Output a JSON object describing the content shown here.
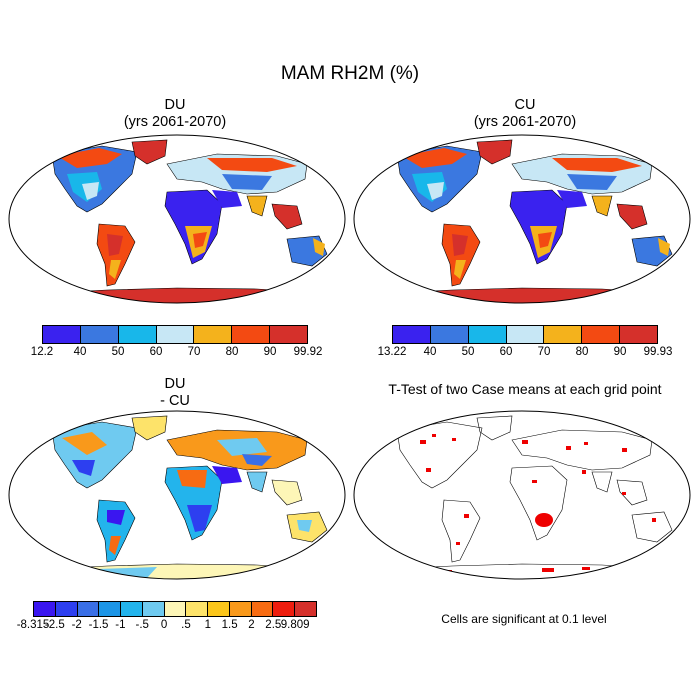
{
  "title": "MAM RH2M (%)",
  "panels": {
    "du": {
      "title": "DU",
      "subtitle": "(yrs 2061-2070)"
    },
    "cu": {
      "title": "CU",
      "subtitle": "(yrs 2061-2070)"
    },
    "diff": {
      "title": "DU",
      "subtitle": "- CU"
    },
    "ttest": {
      "title": "T-Test of two Case means at each grid point"
    }
  },
  "colorbars": {
    "du": {
      "labels": [
        "12.2",
        "40",
        "50",
        "60",
        "70",
        "80",
        "90",
        "99.92"
      ],
      "colors": [
        "#3a22ef",
        "#3b78e0",
        "#18b7ea",
        "#c7e7f5",
        "#f4b21c",
        "#f34a12",
        "#d5302b"
      ]
    },
    "cu": {
      "labels": [
        "13.22",
        "40",
        "50",
        "60",
        "70",
        "80",
        "90",
        "99.93"
      ],
      "colors": [
        "#3a22ef",
        "#3b78e0",
        "#18b7ea",
        "#c7e7f5",
        "#f4b21c",
        "#f34a12",
        "#d5302b"
      ]
    },
    "diff": {
      "labels": [
        "-8.315",
        "-2.5",
        "-2",
        "-1.5",
        "-1",
        "-.5",
        "0",
        ".5",
        "1",
        "1.5",
        "2",
        "2.5",
        "9.809"
      ],
      "colors": [
        "#3a16f0",
        "#2d3ff0",
        "#3a6fe6",
        "#1c95e6",
        "#23b4ec",
        "#6fcaf0",
        "#fdf6b7",
        "#fde36a",
        "#fbc61b",
        "#f9991b",
        "#f76b12",
        "#ee1d0e",
        "#d5302b"
      ]
    }
  },
  "significance_note": "Cells are significant at 0.1 level",
  "legend_colors": {
    "significant": "#ee0000",
    "land_outline": "#000000"
  }
}
